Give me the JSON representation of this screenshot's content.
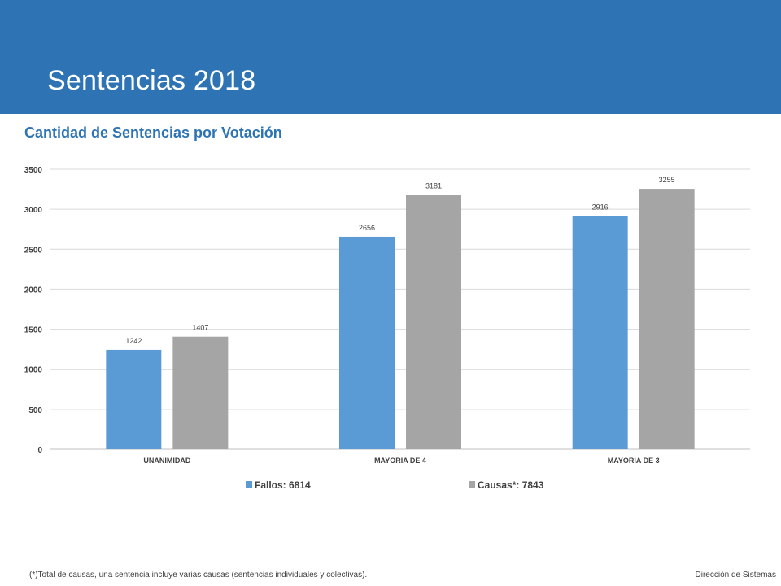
{
  "slide": {
    "title": "Sentencias 2018",
    "chart_heading": "Cantidad de Sentencias por Votación",
    "footnote": "(*)Total de causas, una sentencia incluye varias causas (sentencias individuales y colectivas).",
    "footer_right": "Dirección  de Sistemas"
  },
  "colors": {
    "header_band": "#2e74b5",
    "fallos": "#5b9bd5",
    "causas": "#a5a5a5"
  },
  "chart_data": {
    "type": "bar",
    "title": "Cantidad de Sentencias por Votación",
    "categories": [
      "UNANIMIDAD",
      "MAYORIA DE 4",
      "MAYORIA DE 3"
    ],
    "series": [
      {
        "name": "Fallos: 6814",
        "values": [
          1242,
          2656,
          2916
        ],
        "color": "#5b9bd5"
      },
      {
        "name": "Causas*: 7843",
        "values": [
          1407,
          3181,
          3255
        ],
        "color": "#a5a5a5"
      }
    ],
    "ylim": [
      0,
      3500
    ],
    "yticks": [
      0,
      500,
      1000,
      1500,
      2000,
      2500,
      3000,
      3500
    ],
    "grid": true,
    "legend_position": "bottom",
    "data_labels": true
  }
}
